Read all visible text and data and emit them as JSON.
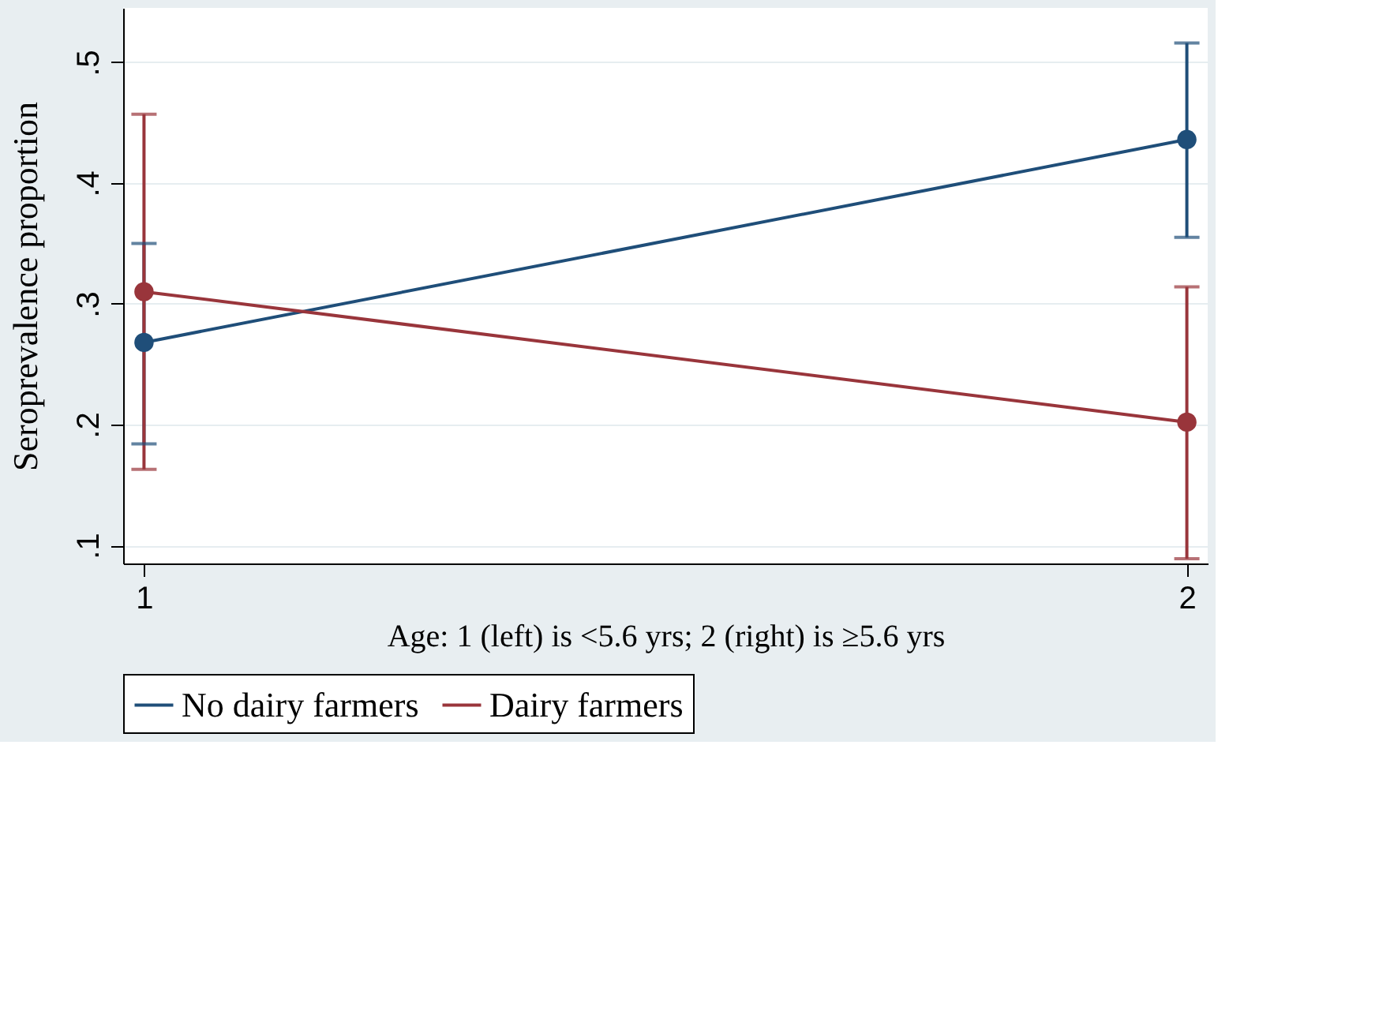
{
  "chart_data": {
    "type": "line",
    "xlabel": "Age: 1 (left) is <5.6 yrs;  2 (right) is ≥5.6 yrs",
    "ylabel": "Seroprevalence proportion",
    "x": [
      1,
      2
    ],
    "xlim": [
      0.98,
      2.02
    ],
    "xticks": [
      1,
      2
    ],
    "ylim": [
      0.085,
      0.545
    ],
    "yticks": [
      {
        "value": 0.1,
        "label": ".1"
      },
      {
        "value": 0.2,
        "label": ".2"
      },
      {
        "value": 0.3,
        "label": ".3"
      },
      {
        "value": 0.4,
        "label": ".4"
      },
      {
        "value": 0.5,
        "label": ".5"
      }
    ],
    "series": [
      {
        "name": "No dairy farmers",
        "color": "#1f4e79",
        "values": [
          0.268,
          0.436
        ],
        "errors": [
          [
            0.184,
            0.35
          ],
          [
            0.355,
            0.516
          ]
        ]
      },
      {
        "name": "Dairy farmers",
        "color": "#99353b",
        "values": [
          0.31,
          0.202
        ],
        "errors": [
          [
            0.163,
            0.457
          ],
          [
            0.089,
            0.314
          ]
        ]
      }
    ],
    "grid": "y",
    "legend": "bottom",
    "marker": "circle",
    "line_style": "solid"
  }
}
